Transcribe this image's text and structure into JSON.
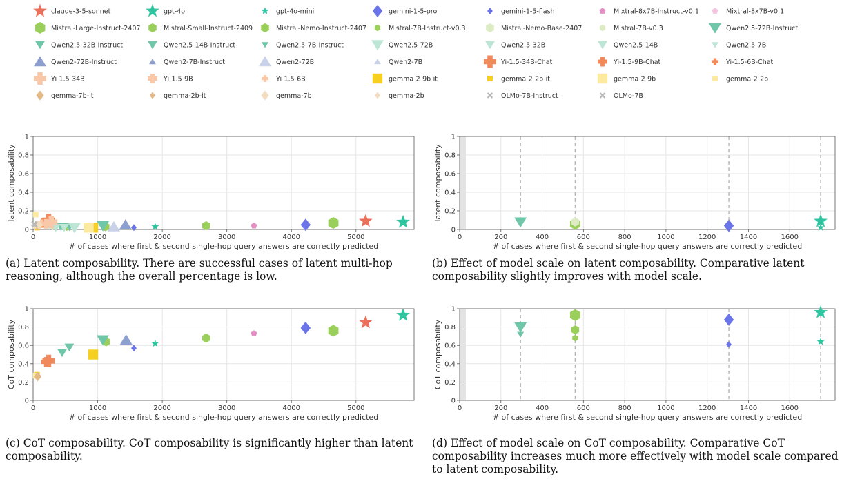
{
  "legend": [
    {
      "name": "claude-3-5-sonnet",
      "color": "#ec6f5a",
      "marker": "star",
      "size": "large"
    },
    {
      "name": "gpt-4o",
      "color": "#2ec5a0",
      "marker": "star",
      "size": "large"
    },
    {
      "name": "gpt-4o-mini",
      "color": "#2ec5a0",
      "marker": "star",
      "size": "small"
    },
    {
      "name": "gemini-1-5-pro",
      "color": "#6b74e8",
      "marker": "diamond",
      "size": "large"
    },
    {
      "name": "gemini-1-5-flash",
      "color": "#6b74e8",
      "marker": "diamond",
      "size": "small"
    },
    {
      "name": "Mixtral-8x7B-Instruct-v0.1",
      "color": "#e58fc4",
      "marker": "pentagon",
      "size": "small"
    },
    {
      "name": "Mixtral-8x7B-v0.1",
      "color": "#f5c4df",
      "marker": "pentagon",
      "size": "small"
    },
    {
      "name": "Mistral-Large-Instruct-2407",
      "color": "#9bcf5b",
      "marker": "hexagon",
      "size": "large"
    },
    {
      "name": "Mistral-Small-Instruct-2409",
      "color": "#9bcf5b",
      "marker": "hexagon",
      "size": "medium"
    },
    {
      "name": "Mistral-Nemo-Instruct-2407",
      "color": "#9bcf5b",
      "marker": "hexagon",
      "size": "medium"
    },
    {
      "name": "Mistral-7B-Instruct-v0.3",
      "color": "#9bcf5b",
      "marker": "hexagon",
      "size": "small"
    },
    {
      "name": "Mistral-Nemo-Base-2407",
      "color": "#ddecc4",
      "marker": "hexagon",
      "size": "medium"
    },
    {
      "name": "Mistral-7B-v0.3",
      "color": "#ddecc4",
      "marker": "hexagon",
      "size": "small"
    },
    {
      "name": "Qwen2.5-72B-Instruct",
      "color": "#6fc6a8",
      "marker": "tri_down",
      "size": "large"
    },
    {
      "name": "Qwen2.5-32B-Instruct",
      "color": "#6fc6a8",
      "marker": "tri_down",
      "size": "medium"
    },
    {
      "name": "Qwen2.5-14B-Instruct",
      "color": "#6fc6a8",
      "marker": "tri_down",
      "size": "medium"
    },
    {
      "name": "Qwen2.5-7B-Instruct",
      "color": "#6fc6a8",
      "marker": "tri_down",
      "size": "small"
    },
    {
      "name": "Qwen2.5-72B",
      "color": "#bde6d6",
      "marker": "tri_down",
      "size": "large"
    },
    {
      "name": "Qwen2.5-32B",
      "color": "#bde6d6",
      "marker": "tri_down",
      "size": "medium"
    },
    {
      "name": "Qwen2.5-14B",
      "color": "#bde6d6",
      "marker": "tri_down",
      "size": "medium"
    },
    {
      "name": "Qwen2.5-7B",
      "color": "#bde6d6",
      "marker": "tri_down",
      "size": "small"
    },
    {
      "name": "Qwen2-72B-Instruct",
      "color": "#8d9fcf",
      "marker": "tri_up",
      "size": "large"
    },
    {
      "name": "Qwen2-7B-Instruct",
      "color": "#8d9fcf",
      "marker": "tri_up",
      "size": "small"
    },
    {
      "name": "Qwen2-72B",
      "color": "#c9d2e8",
      "marker": "tri_up",
      "size": "large"
    },
    {
      "name": "Qwen2-7B",
      "color": "#c9d2e8",
      "marker": "tri_up",
      "size": "small"
    },
    {
      "name": "Yi-1.5-34B-Chat",
      "color": "#f08a5d",
      "marker": "plus",
      "size": "large"
    },
    {
      "name": "Yi-1.5-9B-Chat",
      "color": "#f08a5d",
      "marker": "plus",
      "size": "medium"
    },
    {
      "name": "Yi-1.5-6B-Chat",
      "color": "#f08a5d",
      "marker": "plus",
      "size": "small"
    },
    {
      "name": "Yi-1.5-34B",
      "color": "#f8c8a8",
      "marker": "plus",
      "size": "large"
    },
    {
      "name": "Yi-1.5-9B",
      "color": "#f8c8a8",
      "marker": "plus",
      "size": "medium"
    },
    {
      "name": "Yi-1.5-6B",
      "color": "#f8c8a8",
      "marker": "plus",
      "size": "small"
    },
    {
      "name": "gemma-2-9b-it",
      "color": "#f5d020",
      "marker": "square",
      "size": "large"
    },
    {
      "name": "gemma-2-2b-it",
      "color": "#f5d020",
      "marker": "square",
      "size": "small"
    },
    {
      "name": "gemma-2-9b",
      "color": "#fbeaa0",
      "marker": "square",
      "size": "large"
    },
    {
      "name": "gemma-2-2b",
      "color": "#fbeaa0",
      "marker": "square",
      "size": "small"
    },
    {
      "name": "gemma-7b-it",
      "color": "#e3b986",
      "marker": "diamond",
      "size": "medium"
    },
    {
      "name": "gemma-2b-it",
      "color": "#e3b986",
      "marker": "diamond",
      "size": "small"
    },
    {
      "name": "gemma-7b",
      "color": "#f3dcc0",
      "marker": "diamond",
      "size": "medium"
    },
    {
      "name": "gemma-2b",
      "color": "#f3dcc0",
      "marker": "diamond",
      "size": "small"
    },
    {
      "name": "OLMo-7B-Instruct",
      "color": "#b8b8b8",
      "marker": "x",
      "size": "small"
    },
    {
      "name": "OLMo-7B",
      "color": "#b8b8b8",
      "marker": "x",
      "size": "small"
    }
  ],
  "chart_data": [
    {
      "id": "a",
      "type": "scatter",
      "xlabel": "# of cases where first & second single-hop query answers are correctly predicted",
      "ylabel": "latent composability",
      "xlim": [
        0,
        5900
      ],
      "ylim": [
        0,
        1
      ],
      "xticks": [
        0,
        1000,
        2000,
        3000,
        4000,
        5000
      ],
      "yticks": [
        0,
        0.2,
        0.4,
        0.6,
        0.8,
        1
      ],
      "ytick_labels": [
        "0",
        "0.2",
        "0.4",
        "0.6",
        "0.8",
        "1"
      ],
      "grid": true,
      "vlines": [],
      "points": [
        {
          "model": "claude-3-5-sonnet",
          "x": 5150,
          "y": 0.09
        },
        {
          "model": "gpt-4o",
          "x": 5730,
          "y": 0.08
        },
        {
          "model": "gpt-4o-mini",
          "x": 1890,
          "y": 0.03
        },
        {
          "model": "gemini-1-5-pro",
          "x": 4220,
          "y": 0.05
        },
        {
          "model": "gemini-1-5-flash",
          "x": 1560,
          "y": 0.02
        },
        {
          "model": "Mixtral-8x7B-Instruct-v0.1",
          "x": 3420,
          "y": 0.04
        },
        {
          "model": "Mistral-Large-Instruct-2407",
          "x": 4650,
          "y": 0.07
        },
        {
          "model": "Mistral-Small-Instruct-2409",
          "x": 2680,
          "y": 0.04
        },
        {
          "model": "Mistral-Nemo-Instruct-2407",
          "x": 1120,
          "y": 0.03
        },
        {
          "model": "Mistral-7B-Instruct-v0.3",
          "x": 520,
          "y": 0.02
        },
        {
          "model": "Mistral-Nemo-Base-2407",
          "x": 900,
          "y": 0.02
        },
        {
          "model": "Mistral-7B-v0.3",
          "x": 300,
          "y": 0.03
        },
        {
          "model": "Qwen2.5-72B-Instruct",
          "x": 1080,
          "y": 0.04
        },
        {
          "model": "Qwen2.5-32B-Instruct",
          "x": 560,
          "y": 0.03
        },
        {
          "model": "Qwen2.5-14B-Instruct",
          "x": 430,
          "y": 0.03
        },
        {
          "model": "Qwen2.5-7B-Instruct",
          "x": 300,
          "y": 0.04
        },
        {
          "model": "Qwen2.5-72B",
          "x": 640,
          "y": 0.02
        },
        {
          "model": "Qwen2.5-32B",
          "x": 480,
          "y": 0.02
        },
        {
          "model": "Qwen2.5-14B",
          "x": 350,
          "y": 0.02
        },
        {
          "model": "Qwen2.5-7B",
          "x": 250,
          "y": 0.03
        },
        {
          "model": "Qwen2-72B-Instruct",
          "x": 1430,
          "y": 0.05
        },
        {
          "model": "Qwen2-7B-Instruct",
          "x": 160,
          "y": 0.05
        },
        {
          "model": "Qwen2-72B",
          "x": 1250,
          "y": 0.03
        },
        {
          "model": "Qwen2-7B",
          "x": 120,
          "y": 0.06
        },
        {
          "model": "Yi-1.5-34B-Chat",
          "x": 240,
          "y": 0.1
        },
        {
          "model": "Yi-1.5-9B-Chat",
          "x": 160,
          "y": 0.07
        },
        {
          "model": "Yi-1.5-6B-Chat",
          "x": 100,
          "y": 0.05
        },
        {
          "model": "Yi-1.5-34B",
          "x": 280,
          "y": 0.08
        },
        {
          "model": "Yi-1.5-9B",
          "x": 200,
          "y": 0.06
        },
        {
          "model": "Yi-1.5-6B",
          "x": 130,
          "y": 0.07
        },
        {
          "model": "gemma-2-9b-it",
          "x": 930,
          "y": 0.02
        },
        {
          "model": "gemma-2-2b-it",
          "x": 60,
          "y": 0.02
        },
        {
          "model": "gemma-2-9b",
          "x": 860,
          "y": 0.02
        },
        {
          "model": "gemma-2-2b",
          "x": 40,
          "y": 0.16
        },
        {
          "model": "gemma-7b-it",
          "x": 70,
          "y": 0.04
        },
        {
          "model": "gemma-2b-it",
          "x": 30,
          "y": 0.05
        },
        {
          "model": "gemma-7b",
          "x": 90,
          "y": 0.05
        },
        {
          "model": "gemma-2b",
          "x": 20,
          "y": 0.03
        },
        {
          "model": "OLMo-7B-Instruct",
          "x": 25,
          "y": 0.05
        },
        {
          "model": "OLMo-7B",
          "x": 15,
          "y": 0.06
        }
      ]
    },
    {
      "id": "b",
      "type": "scatter",
      "xlabel": "# of cases where first & second single-hop query answers are correctly predicted",
      "ylabel": "latent composability",
      "xlim": [
        0,
        1820
      ],
      "ylim": [
        0,
        1
      ],
      "xticks": [
        0,
        200,
        400,
        600,
        800,
        1000,
        1200,
        1400,
        1600
      ],
      "yticks": [
        0,
        0.2,
        0.4,
        0.6,
        0.8,
        1
      ],
      "ytick_labels": [
        "0",
        "0.2",
        "0.4",
        "0.6",
        "0.8",
        "1"
      ],
      "grid": true,
      "shade_x": [
        0,
        30
      ],
      "vlines": [
        295,
        560,
        1305,
        1750
      ],
      "points": [
        {
          "model": "Qwen2.5-72B-Instruct",
          "x": 295,
          "y": 0.08
        },
        {
          "model": "Qwen2.5-7B-Instruct",
          "x": 295,
          "y": 0.06
        },
        {
          "model": "Mistral-Large-Instruct-2407",
          "x": 560,
          "y": 0.06
        },
        {
          "model": "Mistral-7B-Instruct-v0.3",
          "x": 560,
          "y": 0.04
        },
        {
          "model": "Mistral-Nemo-Base-2407",
          "x": 560,
          "y": 0.08
        },
        {
          "model": "gemini-1-5-pro",
          "x": 1305,
          "y": 0.04
        },
        {
          "model": "gemini-1-5-flash",
          "x": 1305,
          "y": 0.03
        },
        {
          "model": "gpt-4o",
          "x": 1750,
          "y": 0.09
        },
        {
          "model": "gpt-4o-mini",
          "x": 1750,
          "y": 0.02
        }
      ]
    },
    {
      "id": "c",
      "type": "scatter",
      "xlabel": "# of cases where first & second single-hop query answers are correctly predicted",
      "ylabel": "CoT composability",
      "xlim": [
        0,
        5900
      ],
      "ylim": [
        0,
        1
      ],
      "xticks": [
        0,
        1000,
        2000,
        3000,
        4000,
        5000
      ],
      "yticks": [
        0,
        0.2,
        0.4,
        0.6,
        0.8,
        1
      ],
      "ytick_labels": [
        "0",
        "0.2",
        "0.4",
        "0.6",
        "0.8",
        "1"
      ],
      "grid": true,
      "vlines": [],
      "points": [
        {
          "model": "claude-3-5-sonnet",
          "x": 5150,
          "y": 0.85
        },
        {
          "model": "gpt-4o",
          "x": 5730,
          "y": 0.93
        },
        {
          "model": "gpt-4o-mini",
          "x": 1890,
          "y": 0.62
        },
        {
          "model": "gemini-1-5-pro",
          "x": 4220,
          "y": 0.79
        },
        {
          "model": "gemini-1-5-flash",
          "x": 1560,
          "y": 0.57
        },
        {
          "model": "Mixtral-8x7B-Instruct-v0.1",
          "x": 3420,
          "y": 0.73
        },
        {
          "model": "Mistral-Large-Instruct-2407",
          "x": 4650,
          "y": 0.76
        },
        {
          "model": "Mistral-Small-Instruct-2409",
          "x": 2680,
          "y": 0.68
        },
        {
          "model": "Mistral-Nemo-Instruct-2407",
          "x": 1130,
          "y": 0.64
        },
        {
          "model": "Qwen2.5-72B-Instruct",
          "x": 1080,
          "y": 0.66
        },
        {
          "model": "Qwen2.5-32B-Instruct",
          "x": 560,
          "y": 0.58
        },
        {
          "model": "Qwen2.5-14B-Instruct",
          "x": 450,
          "y": 0.52
        },
        {
          "model": "Qwen2-72B-Instruct",
          "x": 1440,
          "y": 0.66
        },
        {
          "model": "Yi-1.5-34B-Chat",
          "x": 240,
          "y": 0.43
        },
        {
          "model": "Yi-1.5-9B-Chat",
          "x": 200,
          "y": 0.42
        },
        {
          "model": "gemma-2-9b-it",
          "x": 930,
          "y": 0.5
        },
        {
          "model": "gemma-2-2b-it",
          "x": 60,
          "y": 0.28
        },
        {
          "model": "gemma-2-2b",
          "x": 40,
          "y": 0.27
        },
        {
          "model": "gemma-7b-it",
          "x": 70,
          "y": 0.26
        }
      ]
    },
    {
      "id": "d",
      "type": "scatter",
      "xlabel": "# of cases where first & second single-hop query answers are correctly predicted",
      "ylabel": "CoT composability",
      "xlim": [
        0,
        1820
      ],
      "ylim": [
        0,
        1
      ],
      "xticks": [
        0,
        200,
        400,
        600,
        800,
        1000,
        1200,
        1400,
        1600
      ],
      "yticks": [
        0,
        0.2,
        0.4,
        0.6,
        0.8,
        1
      ],
      "ytick_labels": [
        "0",
        "0.2",
        "0.4",
        "0.6",
        "0.8",
        "1"
      ],
      "grid": true,
      "shade_x": [
        0,
        30
      ],
      "vlines": [
        295,
        560,
        1305,
        1750
      ],
      "points": [
        {
          "model": "Qwen2.5-72B-Instruct",
          "x": 295,
          "y": 0.8
        },
        {
          "model": "Qwen2.5-7B-Instruct",
          "x": 295,
          "y": 0.72
        },
        {
          "model": "Mistral-Large-Instruct-2407",
          "x": 560,
          "y": 0.93
        },
        {
          "model": "Mistral-Nemo-Instruct-2407",
          "x": 560,
          "y": 0.77
        },
        {
          "model": "Mistral-7B-Instruct-v0.3",
          "x": 560,
          "y": 0.68
        },
        {
          "model": "gemini-1-5-pro",
          "x": 1305,
          "y": 0.88
        },
        {
          "model": "gemini-1-5-flash",
          "x": 1305,
          "y": 0.61
        },
        {
          "model": "gpt-4o",
          "x": 1750,
          "y": 0.96
        },
        {
          "model": "gpt-4o-mini",
          "x": 1750,
          "y": 0.64
        }
      ]
    }
  ],
  "captions": {
    "a": "(a) Latent composability. There are successful cases of latent multi-hop reasoning, although the overall percentage is low.",
    "b": "(b) Effect of model scale on latent composability. Comparative latent composability slightly improves with model scale.",
    "c": "(c) CoT composability. CoT composability is significantly higher than latent composability.",
    "d": "(d) Effect of model scale on CoT composability. Comparative CoT composability increases much more effectively with model scale compared to latent composability."
  }
}
